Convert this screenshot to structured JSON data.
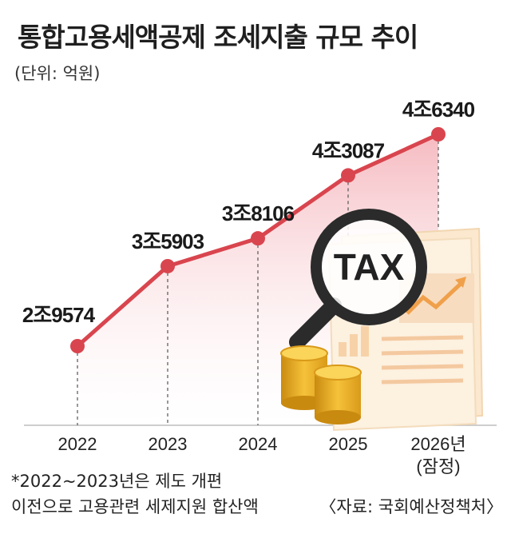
{
  "title": "통합고용세액공제 조세지출 규모 추이",
  "unit": "(단위: 억원)",
  "footnote": {
    "line1": "*2022~2023년은 제도 개편",
    "line2": "이전으로 고용관련 세제지원 합산액"
  },
  "source": "〈자료: 국회예산정책처〉",
  "illustration": {
    "magnifier_text": "TAX",
    "icons": [
      "magnifying-glass-icon",
      "document-icon",
      "coin-stack-icon",
      "trend-arrow-icon"
    ]
  },
  "colors": {
    "line": "#d9454e",
    "area_top": "#f4b3ba",
    "area_bottom": "#ffffff"
  },
  "chart_data": {
    "type": "line",
    "x": [
      "2022",
      "2023",
      "2024",
      "2025",
      "2026년"
    ],
    "x_sublabels": [
      "",
      "",
      "",
      "",
      "(잠정)"
    ],
    "values": [
      29574,
      35903,
      38106,
      43087,
      46340
    ],
    "data_labels": [
      "2조9574",
      "3조5903",
      "3조8106",
      "4조3087",
      "4조6340"
    ],
    "title": "통합고용세액공제 조세지출 규모 추이",
    "ylabel": "",
    "xlabel": "",
    "grid": false,
    "legend": "none"
  }
}
